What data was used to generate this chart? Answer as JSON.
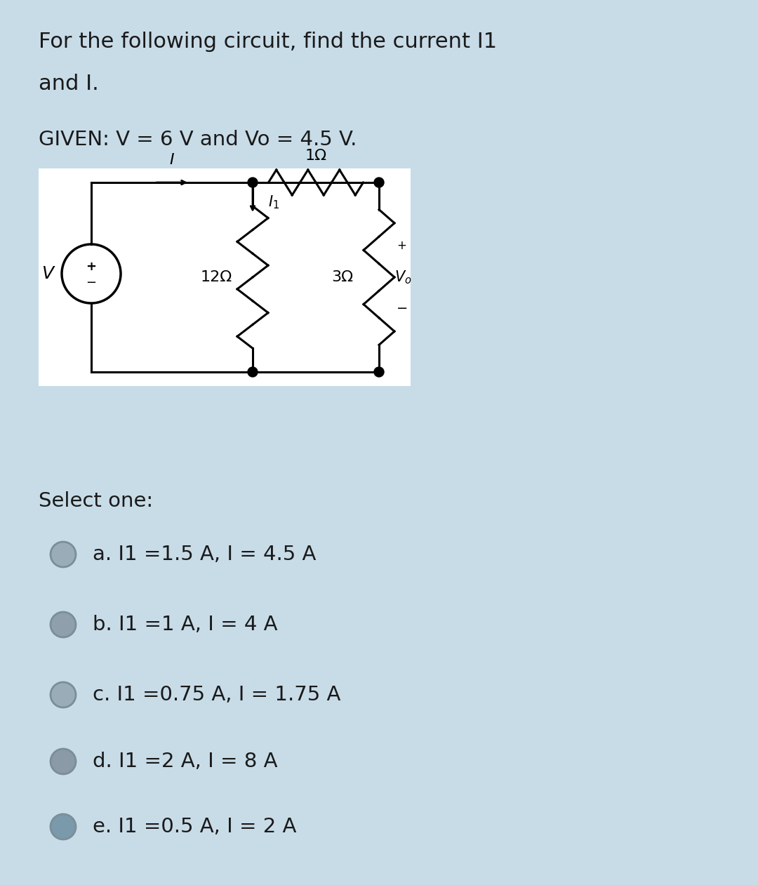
{
  "bg_color": "#c8dce8",
  "circuit_bg": "#ffffff",
  "title_line1": "For the following circuit, find the current I1",
  "title_line2": "and I.",
  "given_text": "GIVEN: V = 6 V and Vo = 4.5 V.",
  "select_text": "Select one:",
  "options": [
    "a. I1 =1.5 A, I = 4.5 A",
    "b. I1 =1 A, I = 4 A",
    "c. I1 =0.75 A, I = 1.75 A",
    "d. I1 =2 A, I = 8 A",
    "e. I1 =0.5 A, I = 2 A"
  ],
  "radio_fills": [
    "#9aacb8",
    "#8fa0ac",
    "#9aacb8",
    "#8a9aa6",
    "#7a9aac"
  ],
  "radio_edge": "#7a8e9a",
  "text_color": "#1a1a1a",
  "font_size_title": 22,
  "font_size_given": 21,
  "font_size_options": 21,
  "font_size_select": 21,
  "font_size_circuit": 16
}
